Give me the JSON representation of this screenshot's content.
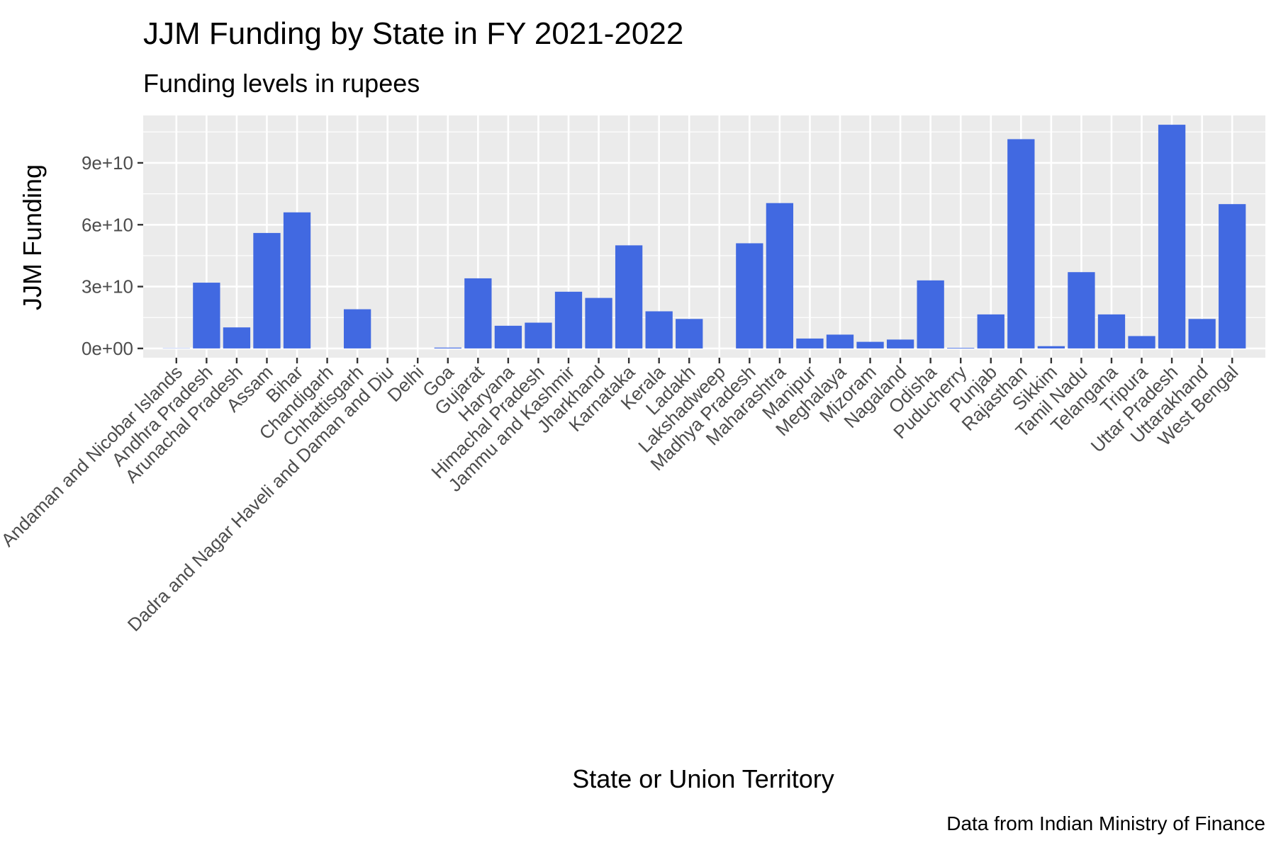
{
  "chart_data": {
    "type": "bar",
    "title": "JJM Funding by State in FY 2021-2022",
    "subtitle": "Funding levels in rupees",
    "xlabel": "State or Union Territory",
    "ylabel": "JJM Funding",
    "caption": "Data from Indian Ministry of Finance",
    "ylim": [
      -4500000000,
      113000000000
    ],
    "y_ticks": [
      0,
      30000000000,
      60000000000,
      90000000000
    ],
    "y_tick_labels": [
      "0e+00",
      "3e+10",
      "6e+10",
      "9e+10"
    ],
    "grid": true,
    "bar_color": "#4169E1",
    "panel_background": "#EBEBEB",
    "grid_color": "#FFFFFF",
    "categories": [
      "Andaman and Nicobar Islands",
      "Andhra Pradesh",
      "Arunachal Pradesh",
      "Assam",
      "Bihar",
      "Chandigarh",
      "Chhattisgarh",
      "Dadra and Nagar Haveli and Daman and Diu",
      "Delhi",
      "Goa",
      "Gujarat",
      "Haryana",
      "Himachal Pradesh",
      "Jammu and Kashmir",
      "Jharkhand",
      "Karnataka",
      "Kerala",
      "Ladakh",
      "Lakshadweep",
      "Madhya Pradesh",
      "Maharashtra",
      "Manipur",
      "Meghalaya",
      "Mizoram",
      "Nagaland",
      "Odisha",
      "Puducherry",
      "Punjab",
      "Rajasthan",
      "Sikkim",
      "Tamil Nadu",
      "Telangana",
      "Tripura",
      "Uttar Pradesh",
      "Uttarakhand",
      "West Bengal"
    ],
    "values": [
      100000000,
      31900000000,
      10200000000,
      56000000000,
      66000000000,
      0,
      19000000000,
      0,
      0,
      400000000,
      34000000000,
      11000000000,
      12500000000,
      27500000000,
      24500000000,
      50000000000,
      18000000000,
      14300000000,
      0,
      51000000000,
      70500000000,
      4800000000,
      6700000000,
      3200000000,
      4300000000,
      33000000000,
      300000000,
      16500000000,
      101500000000,
      1100000000,
      37000000000,
      16500000000,
      6000000000,
      108500000000,
      14300000000,
      70000000000
    ]
  }
}
